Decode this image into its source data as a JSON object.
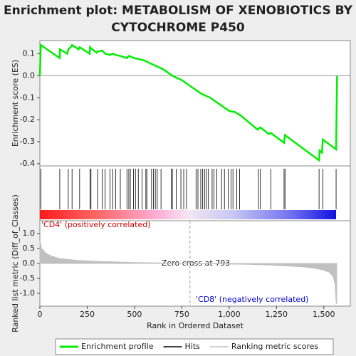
{
  "chart_data": [
    {
      "type": "line",
      "title": "Enrichment plot: METABOLISM OF XENOBIOTICS BY CYTOCHROME P450",
      "y_label": "Enrichment score (ES)",
      "xlim": [
        0,
        1640
      ],
      "ylim": [
        -0.41,
        0.16
      ],
      "yticks": [
        0.1,
        {
          "value": 0,
          "label": "0.0"
        },
        -0.1,
        -0.2,
        -0.3,
        -0.4
      ],
      "zero_line": true,
      "series": [
        {
          "name": "Enrichment profile",
          "color": "#00ee00",
          "x": [
            0,
            5,
            105,
            106,
            145,
            150,
            168,
            170,
            205,
            210,
            263,
            265,
            270,
            300,
            305,
            330,
            345,
            370,
            385,
            400,
            425,
            460,
            470,
            500,
            550,
            600,
            650,
            700,
            750,
            800,
            850,
            900,
            950,
            1000,
            1030,
            1060,
            1150,
            1155,
            1165,
            1210,
            1220,
            1290,
            1295,
            1475,
            1478,
            1490,
            1495,
            1565,
            1570
          ],
          "values": [
            0,
            0.14,
            0.08,
            0.12,
            0.1,
            0.12,
            0.135,
            0.14,
            0.12,
            0.13,
            0.1,
            0.13,
            0.125,
            0.105,
            0.11,
            0.115,
            0.1,
            0.095,
            0.1,
            0.095,
            0.09,
            0.08,
            0.09,
            0.08,
            0.07,
            0.05,
            0.03,
            0.0,
            -0.02,
            -0.05,
            -0.08,
            -0.1,
            -0.13,
            -0.16,
            -0.165,
            -0.18,
            -0.245,
            -0.24,
            -0.235,
            -0.265,
            -0.26,
            -0.305,
            -0.27,
            -0.385,
            -0.34,
            -0.35,
            -0.29,
            -0.335,
            0.0
          ]
        }
      ]
    },
    {
      "type": "hits",
      "xlim": [
        0,
        1640
      ],
      "series": [
        {
          "name": "Hits",
          "color": "#000000",
          "x": [
            5,
            105,
            150,
            170,
            210,
            265,
            270,
            305,
            330,
            345,
            370,
            385,
            400,
            425,
            460,
            470,
            478,
            495,
            505,
            520,
            540,
            560,
            565,
            590,
            600,
            610,
            620,
            640,
            695,
            700,
            720,
            745,
            760,
            775,
            825,
            835,
            850,
            860,
            870,
            880,
            890,
            910,
            920,
            935,
            960,
            975,
            995,
            1010,
            1020,
            1040,
            1055,
            1155,
            1165,
            1220,
            1290,
            1295,
            1475,
            1495,
            1565
          ]
        }
      ]
    },
    {
      "type": "area",
      "y_label": "Ranked list metric (Diff_of_Classes)",
      "x_label": "Rank in Ordered Dataset",
      "xlim": [
        0,
        1640
      ],
      "ylim": [
        -1.43,
        1.43
      ],
      "xticks": [
        0,
        250,
        500,
        750,
        {
          "value": 1000,
          "label": "1,000"
        },
        {
          "value": 1250,
          "label": "1,250"
        },
        {
          "value": 1500,
          "label": "1,500"
        }
      ],
      "yticks": [
        {
          "value": 1,
          "label": "1.0"
        },
        0.5,
        {
          "value": 0,
          "label": "0.0"
        },
        -0.5,
        {
          "value": -1,
          "label": "-1.0"
        }
      ],
      "zero_cross": 793,
      "annotations": [
        "'CD4' (positively correlated)",
        "Zero cross at 793",
        "'CD8' (negatively correlated)"
      ],
      "series": [
        {
          "name": "Ranking metric scores",
          "color": "#c0c0c0",
          "x": [
            0,
            10,
            30,
            60,
            100,
            150,
            200,
            300,
            400,
            500,
            600,
            700,
            793,
            900,
            1000,
            1100,
            1200,
            1300,
            1400,
            1450,
            1500,
            1530,
            1550,
            1560,
            1565,
            1568
          ],
          "values": [
            0.75,
            0.5,
            0.35,
            0.25,
            0.17,
            0.13,
            0.1,
            0.07,
            0.05,
            0.03,
            0.02,
            0.01,
            0,
            -0.01,
            -0.02,
            -0.03,
            -0.05,
            -0.08,
            -0.12,
            -0.16,
            -0.22,
            -0.3,
            -0.45,
            -0.7,
            -1.3,
            -1.35
          ]
        }
      ]
    }
  ]
}
